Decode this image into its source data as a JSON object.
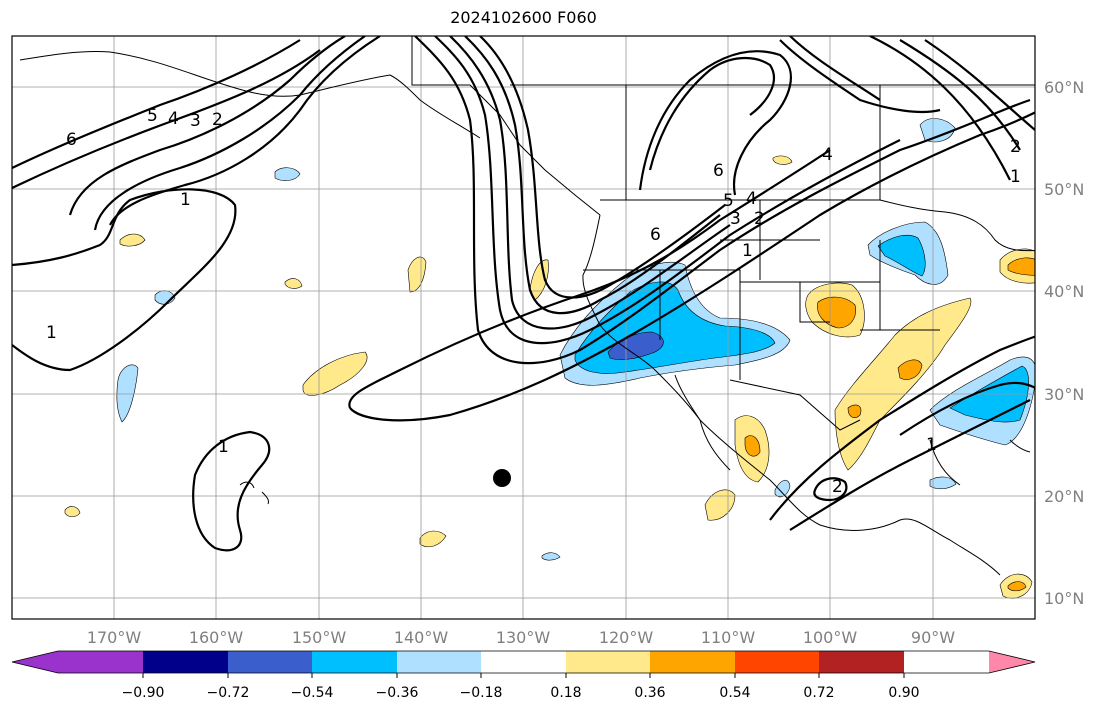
{
  "title": "2024102600 F060",
  "lon_labels": [
    "170°W",
    "160°W",
    "150°W",
    "140°W",
    "130°W",
    "120°W",
    "110°W",
    "100°W",
    "90°W"
  ],
  "lat_labels": [
    "60°N",
    "50°N",
    "40°N",
    "30°N",
    "20°N",
    "10°N"
  ],
  "colorbar": {
    "tick_labels": [
      "−0.90",
      "−0.72",
      "−0.54",
      "−0.36",
      "−0.18",
      "0.18",
      "0.36",
      "0.54",
      "0.72",
      "0.90"
    ],
    "colors": [
      "#9933cc",
      "#00008b",
      "#3a5fcd",
      "#00bfff",
      "#b0e0ff",
      "#ffffff",
      "#ffe98a",
      "#ffa500",
      "#ff4500",
      "#b22222",
      "#ff88aa"
    ]
  },
  "contour_labels": [
    "6",
    "5",
    "4",
    "3",
    "2",
    "1",
    "1",
    "1",
    "6",
    "6",
    "5",
    "4",
    "3",
    "2",
    "1",
    "4",
    "2",
    "1",
    "2",
    "1",
    "2"
  ],
  "marker": {
    "type": "filled-circle",
    "color": "#000000"
  }
}
